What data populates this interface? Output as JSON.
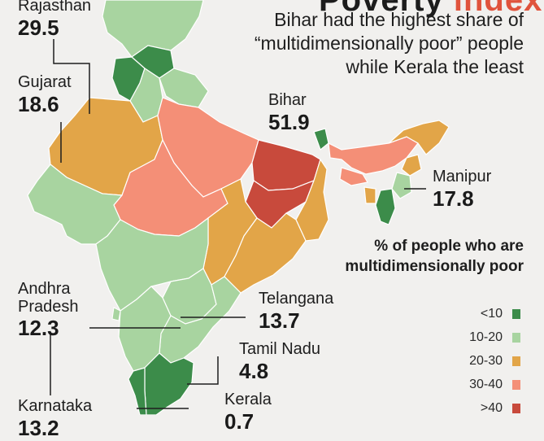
{
  "header": {
    "title_fragment": "Poverty",
    "title_accent": "index",
    "subtitle": "Bihar had the highest share of “multidimensionally poor” people while Kerala the least"
  },
  "legend": {
    "title": "% of people who are multidimensionally poor",
    "items": [
      {
        "label": "<10",
        "color": "#3c8c4a"
      },
      {
        "label": "10-20",
        "color": "#a8d4a0"
      },
      {
        "label": "20-30",
        "color": "#e2a548"
      },
      {
        "label": "30-40",
        "color": "#f48f77"
      },
      {
        "label": ">40",
        "color": "#c84a3c"
      }
    ]
  },
  "callouts": {
    "rajasthan": {
      "name": "Rajasthan",
      "value": "29.5"
    },
    "gujarat": {
      "name": "Gujarat",
      "value": "18.6"
    },
    "bihar": {
      "name": "Bihar",
      "value": "51.9"
    },
    "manipur": {
      "name": "Manipur",
      "value": "17.8"
    },
    "andhra_pradesh": {
      "name": "Andhra\nPradesh",
      "value": "12.3"
    },
    "telangana": {
      "name": "Telangana",
      "value": "13.7"
    },
    "tamil_nadu": {
      "name": "Tamil Nadu",
      "value": "4.8"
    },
    "karnataka": {
      "name": "Karnataka",
      "value": "13.2"
    },
    "kerala": {
      "name": "Kerala",
      "value": "0.7"
    }
  }
}
